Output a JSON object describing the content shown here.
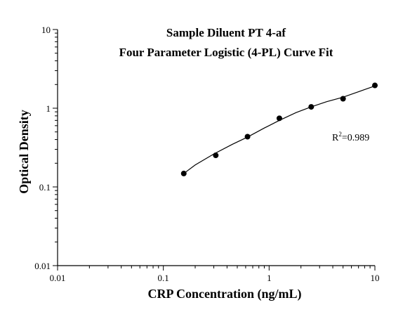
{
  "chart_data": {
    "type": "scatter",
    "title_lines": [
      "Sample Diluent PT 4-af",
      "Four Parameter Logistic (4-PL) Curve Fit"
    ],
    "xlabel": "CRP Concentration (ng/mL)",
    "ylabel": "Optical Density",
    "x_scale": "log",
    "y_scale": "log",
    "xlim": [
      0.01,
      10
    ],
    "ylim": [
      0.01,
      10
    ],
    "x_ticks": [
      0.01,
      0.1,
      1,
      10
    ],
    "x_tick_labels": [
      "0.01",
      "0.1",
      "1",
      "10"
    ],
    "y_ticks": [
      0.01,
      0.1,
      1,
      10
    ],
    "y_tick_labels": [
      "0.01",
      "0.1",
      "1",
      "10"
    ],
    "grid": false,
    "series": [
      {
        "points": [
          {
            "x": 0.156,
            "y": 0.148
          },
          {
            "x": 0.313,
            "y": 0.252
          },
          {
            "x": 0.625,
            "y": 0.435
          },
          {
            "x": 1.25,
            "y": 0.745
          },
          {
            "x": 2.5,
            "y": 1.04
          },
          {
            "x": 5,
            "y": 1.32
          },
          {
            "x": 10,
            "y": 1.95
          }
        ]
      }
    ],
    "fit_curve": {
      "type": "4-PL",
      "x": [
        0.156,
        0.2,
        0.3,
        0.45,
        0.625,
        0.9,
        1.25,
        1.8,
        2.5,
        3.5,
        5,
        7,
        10
      ],
      "y": [
        0.148,
        0.19,
        0.262,
        0.348,
        0.43,
        0.56,
        0.7,
        0.88,
        1.04,
        1.21,
        1.38,
        1.62,
        1.92
      ]
    },
    "annotation": {
      "base": "R",
      "sup": "2",
      "text": "=0.989"
    }
  }
}
